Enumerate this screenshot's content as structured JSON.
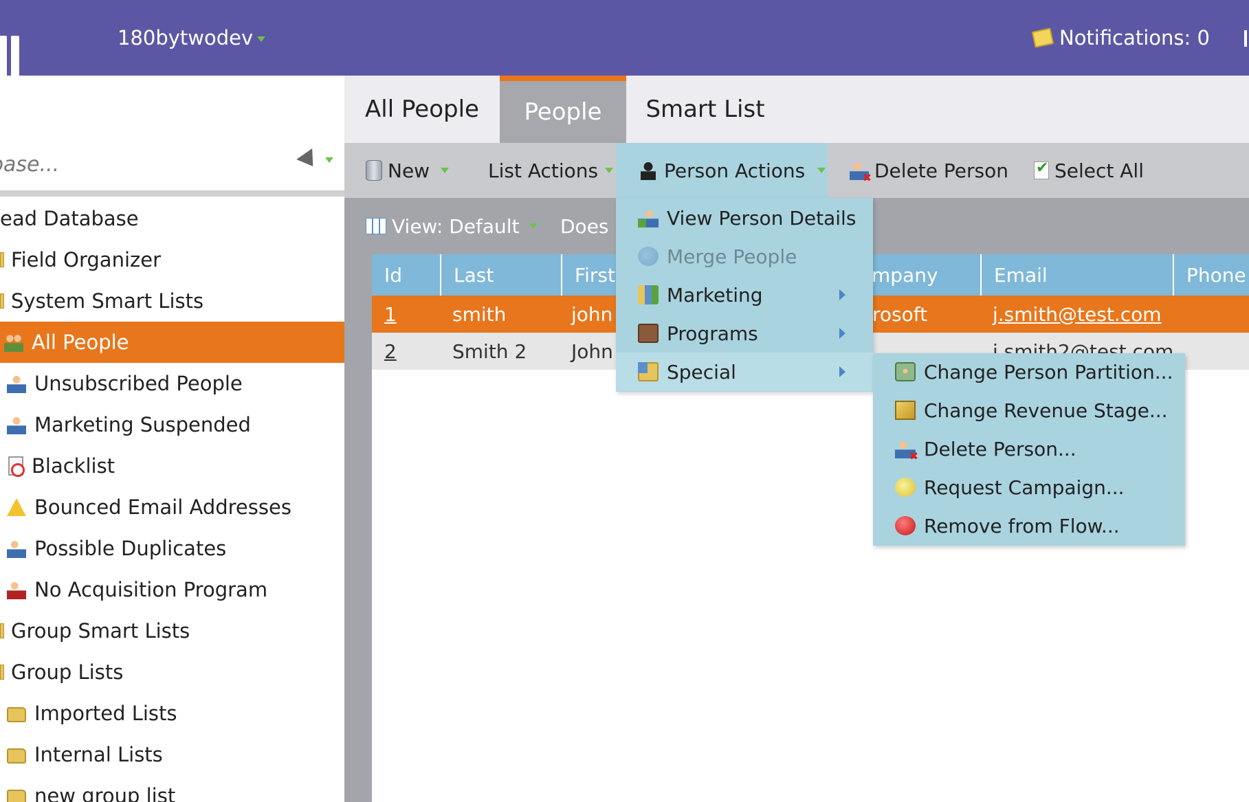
{
  "header": {
    "workspace": "180bytwodev",
    "notifications": "Notifications: 0"
  },
  "search": {
    "placeholder": "base..."
  },
  "tree": {
    "items": [
      {
        "label": "ead Database"
      },
      {
        "label": "Field Organizer"
      },
      {
        "label": "System Smart Lists"
      },
      {
        "label": "All People"
      },
      {
        "label": "Unsubscribed People"
      },
      {
        "label": "Marketing Suspended"
      },
      {
        "label": "Blacklist"
      },
      {
        "label": "Bounced Email Addresses"
      },
      {
        "label": "Possible Duplicates"
      },
      {
        "label": "No Acquisition Program"
      },
      {
        "label": "Group Smart Lists"
      },
      {
        "label": "Group Lists"
      },
      {
        "label": "Imported Lists"
      },
      {
        "label": "Internal Lists"
      },
      {
        "label": "new group list"
      }
    ]
  },
  "tabs": [
    {
      "label": "All People"
    },
    {
      "label": "People"
    },
    {
      "label": "Smart List"
    }
  ],
  "toolbar": {
    "new": "New",
    "list_actions": "List Actions",
    "person_actions": "Person Actions",
    "delete_person": "Delete Person",
    "select_all": "Select All"
  },
  "subtoolbar": {
    "view": "View: Default",
    "does": "Does n"
  },
  "grid": {
    "columns": [
      "Id",
      "Last",
      "First",
      "mpany",
      "Email",
      "Phone"
    ],
    "rows": [
      {
        "id": "1",
        "last": "smith",
        "first": "john",
        "company": "rosoft",
        "email": "j.smith@test.com"
      },
      {
        "id": "2",
        "last": "Smith 2",
        "first": "John",
        "company": "",
        "email": "j.smith2@test.com"
      }
    ]
  },
  "person_menu": {
    "items": [
      {
        "label": "View Person Details",
        "icon": "view-person-icon"
      },
      {
        "label": "Merge People",
        "icon": "merge-people-icon",
        "disabled": true
      },
      {
        "label": "Marketing",
        "icon": "marketing-icon",
        "submenu": true
      },
      {
        "label": "Programs",
        "icon": "programs-icon",
        "submenu": true
      },
      {
        "label": "Special",
        "icon": "special-icon",
        "submenu": true
      }
    ]
  },
  "special_submenu": {
    "items": [
      {
        "label": "Change Person Partition..."
      },
      {
        "label": "Change Revenue Stage..."
      },
      {
        "label": "Delete Person..."
      },
      {
        "label": "Request Campaign..."
      },
      {
        "label": "Remove from Flow..."
      }
    ]
  },
  "colors": {
    "header": "#5c57a4",
    "accent_orange": "#e8761c",
    "menu_blue": "#a9d3df",
    "grid_header": "#7fb8d8"
  }
}
